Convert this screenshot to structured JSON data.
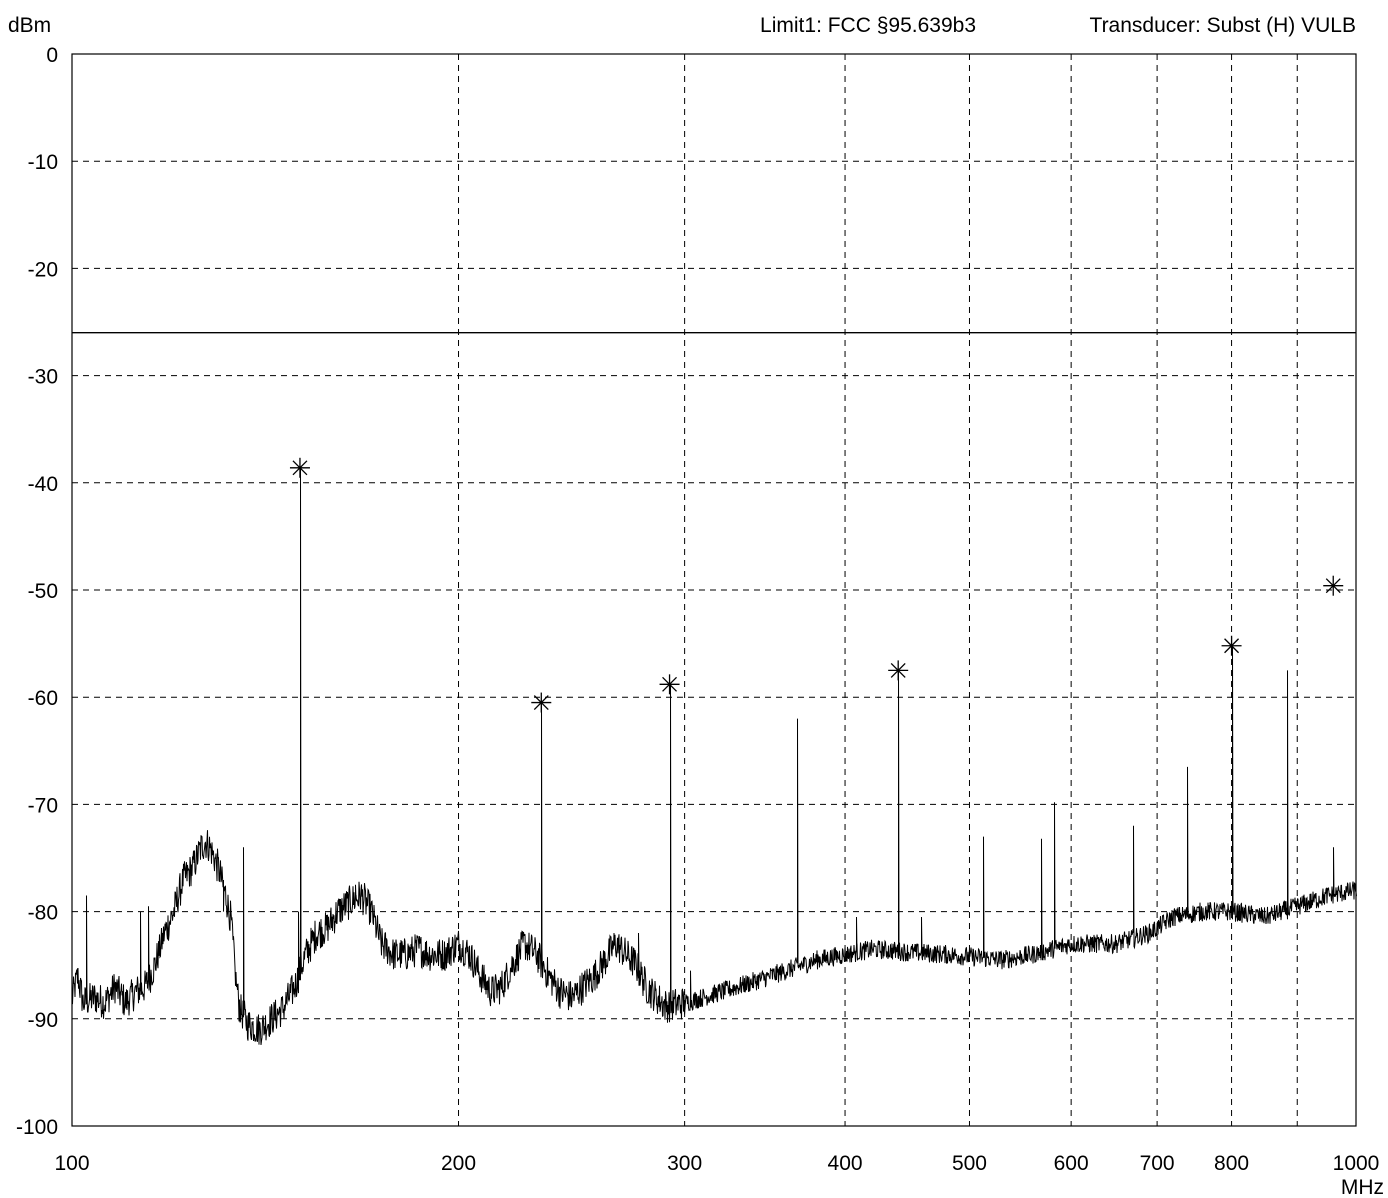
{
  "header": {
    "limit_label": "Limit1: FCC §95.639b3",
    "transducer_label": "Transducer: Subst (H) VULB"
  },
  "chart_data": {
    "type": "line",
    "title": "",
    "ylabel": "dBm",
    "xlabel": "MHz",
    "x_scale": "log",
    "xlim": [
      100,
      1000
    ],
    "ylim": [
      -100,
      0
    ],
    "grid": true,
    "x_ticks": [
      100,
      200,
      300,
      400,
      500,
      600,
      700,
      800,
      1000
    ],
    "x_tick_labels": [
      "100",
      "200",
      "300",
      "400",
      "500",
      "600",
      "700",
      "800",
      "1000"
    ],
    "x_grid": [
      200,
      300,
      400,
      500,
      600,
      700,
      800,
      900
    ],
    "y_ticks": [
      0,
      -10,
      -20,
      -30,
      -40,
      -50,
      -60,
      -70,
      -80,
      -90,
      -100
    ],
    "y_tick_labels": [
      "0",
      "-10",
      "-20",
      "-30",
      "-40",
      "-50",
      "-60",
      "-70",
      "-80",
      "-90",
      "-100"
    ],
    "limit_line": {
      "value": -26
    },
    "trace_color": "#000000",
    "series": [
      {
        "baseline": [
          [
            100,
            -88
          ],
          [
            101,
            -86
          ],
          [
            102,
            -88.5
          ],
          [
            104,
            -88
          ],
          [
            106,
            -88.5
          ],
          [
            108,
            -87
          ],
          [
            110,
            -88.5
          ],
          [
            112,
            -87.5
          ],
          [
            114,
            -87
          ],
          [
            116,
            -85
          ],
          [
            118,
            -82
          ],
          [
            120,
            -80
          ],
          [
            122,
            -77
          ],
          [
            124,
            -76
          ],
          [
            126,
            -74
          ],
          [
            127,
            -73.5
          ],
          [
            128,
            -74
          ],
          [
            130,
            -76
          ],
          [
            132,
            -79
          ],
          [
            133,
            -81
          ],
          [
            134,
            -86
          ],
          [
            135,
            -89
          ],
          [
            137,
            -90.5
          ],
          [
            140,
            -91
          ],
          [
            143,
            -90
          ],
          [
            146,
            -89
          ],
          [
            149,
            -87
          ],
          [
            152,
            -84
          ],
          [
            155,
            -82
          ],
          [
            158,
            -81.5
          ],
          [
            161,
            -80
          ],
          [
            165,
            -79
          ],
          [
            168,
            -78.5
          ],
          [
            171,
            -80
          ],
          [
            174,
            -83
          ],
          [
            178,
            -84
          ],
          [
            182,
            -84
          ],
          [
            186,
            -83.5
          ],
          [
            190,
            -84
          ],
          [
            195,
            -84
          ],
          [
            200,
            -83
          ],
          [
            204,
            -84
          ],
          [
            208,
            -86
          ],
          [
            212,
            -87.5
          ],
          [
            216,
            -87
          ],
          [
            220,
            -85
          ],
          [
            225,
            -83
          ],
          [
            230,
            -84
          ],
          [
            235,
            -86
          ],
          [
            240,
            -87.5
          ],
          [
            245,
            -88
          ],
          [
            250,
            -87
          ],
          [
            255,
            -86
          ],
          [
            260,
            -84.5
          ],
          [
            265,
            -83
          ],
          [
            270,
            -84
          ],
          [
            275,
            -85
          ],
          [
            280,
            -87
          ],
          [
            285,
            -88
          ],
          [
            290,
            -88.8
          ],
          [
            300,
            -88.5
          ],
          [
            320,
            -87.5
          ],
          [
            340,
            -86.5
          ],
          [
            360,
            -85.5
          ],
          [
            380,
            -84.5
          ],
          [
            400,
            -84
          ],
          [
            420,
            -83.5
          ],
          [
            450,
            -83.8
          ],
          [
            480,
            -84
          ],
          [
            500,
            -84.2
          ],
          [
            530,
            -84.5
          ],
          [
            560,
            -84
          ],
          [
            600,
            -83
          ],
          [
            650,
            -83
          ],
          [
            690,
            -82
          ],
          [
            720,
            -80.5
          ],
          [
            760,
            -80
          ],
          [
            800,
            -80
          ],
          [
            850,
            -80.5
          ],
          [
            900,
            -79.5
          ],
          [
            950,
            -78.5
          ],
          [
            1000,
            -78
          ]
        ],
        "spurs": [
          [
            102.5,
            -78.5
          ],
          [
            113,
            -80
          ],
          [
            114.5,
            -79.5
          ],
          [
            131,
            -80
          ],
          [
            136,
            -74
          ],
          [
            150,
            -80
          ],
          [
            166,
            -77.5
          ],
          [
            276,
            -82
          ],
          [
            303,
            -85.5
          ],
          [
            367,
            -62
          ],
          [
            408,
            -80.5
          ],
          [
            458,
            -80.5
          ],
          [
            500,
            -83.5
          ],
          [
            512,
            -73
          ],
          [
            568,
            -73.2
          ],
          [
            582,
            -69.8
          ],
          [
            670,
            -72
          ],
          [
            738,
            -66.5
          ],
          [
            883,
            -57.5
          ],
          [
            960,
            -74
          ]
        ]
      }
    ],
    "markers": [
      {
        "freq": 150.5,
        "level": -38.6
      },
      {
        "freq": 232,
        "level": -60.5
      },
      {
        "freq": 292,
        "level": -58.8
      },
      {
        "freq": 440,
        "level": -57.5
      },
      {
        "freq": 800,
        "level": -55.2
      },
      {
        "freq": 960,
        "level": -49.6
      }
    ]
  }
}
